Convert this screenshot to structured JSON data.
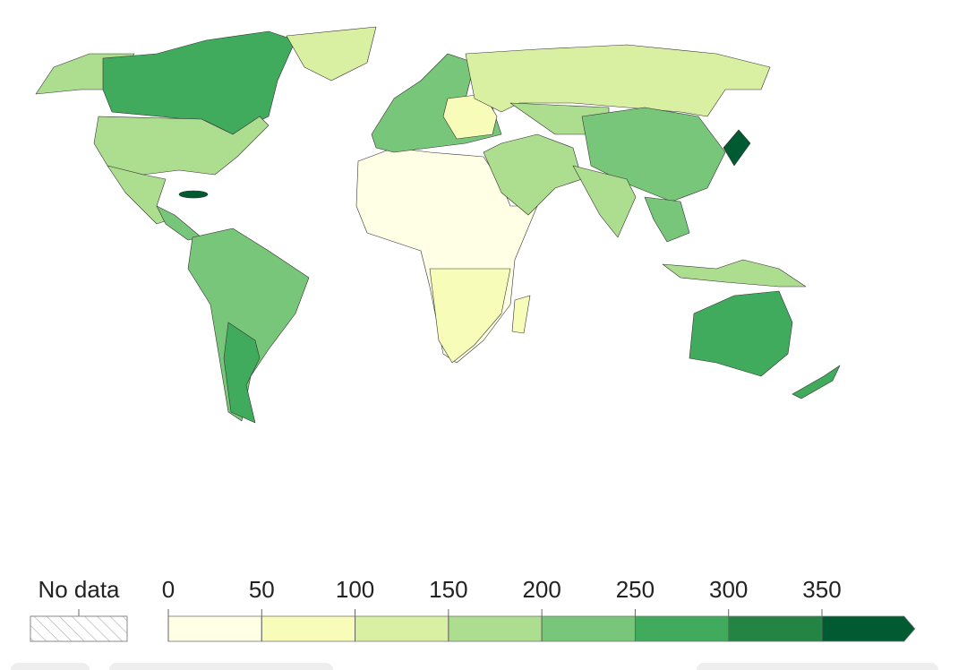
{
  "legend": {
    "no_data_label": "No data",
    "ticks": [
      0,
      50,
      100,
      150,
      200,
      250,
      300,
      350
    ],
    "colors": [
      "#ffffe5",
      "#f7fcb9",
      "#d9f0a3",
      "#addd8e",
      "#78c679",
      "#41ab5d",
      "#238443",
      "#005a32"
    ]
  }
}
